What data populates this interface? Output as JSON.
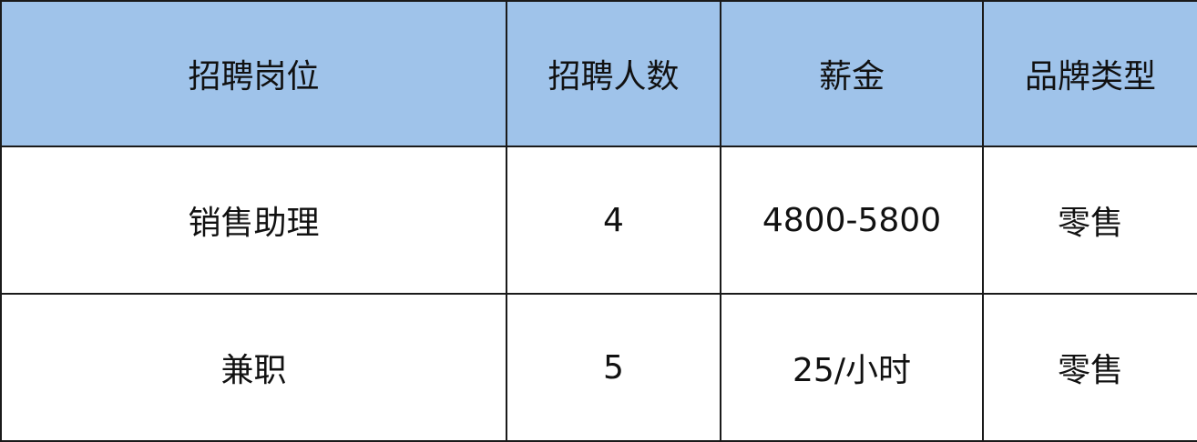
{
  "table": {
    "headers": [
      "招聘岗位",
      "招聘人数",
      "薪金",
      "品牌类型"
    ],
    "rows": [
      [
        "销售助理",
        "4",
        "4800-5800",
        "零售"
      ],
      [
        "兼职",
        "5",
        "25/小时",
        "零售"
      ]
    ]
  },
  "colors": {
    "header_bg": "#9fc3ea",
    "border": "#1a1a1a"
  }
}
